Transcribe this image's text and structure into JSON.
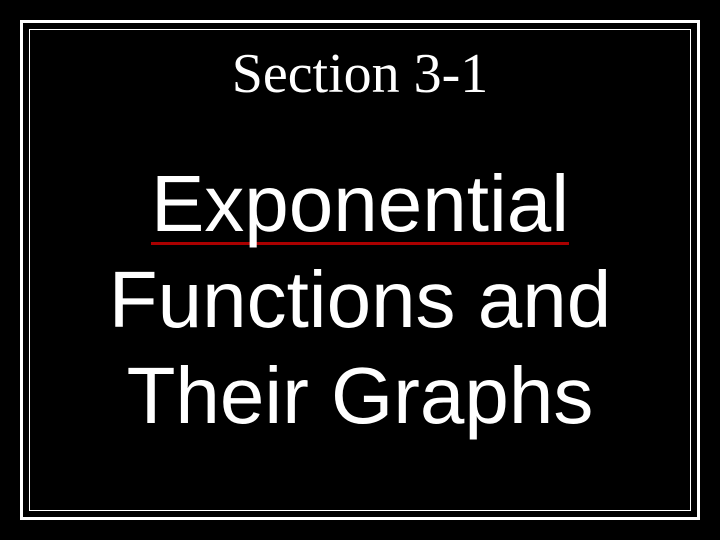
{
  "slide": {
    "section_title": "Section 3-1",
    "main_title_line1": "Exponential",
    "main_title_line2": "Functions and",
    "main_title_line3": "Their Graphs",
    "background_color": "#000000",
    "text_color": "#ffffff",
    "underline_color": "#aa0000",
    "outer_border_width": 3,
    "inner_border_width": 1,
    "section_title_font": "Times New Roman",
    "section_title_fontsize": 56,
    "main_title_font": "Arial",
    "main_title_fontsize": 80
  }
}
